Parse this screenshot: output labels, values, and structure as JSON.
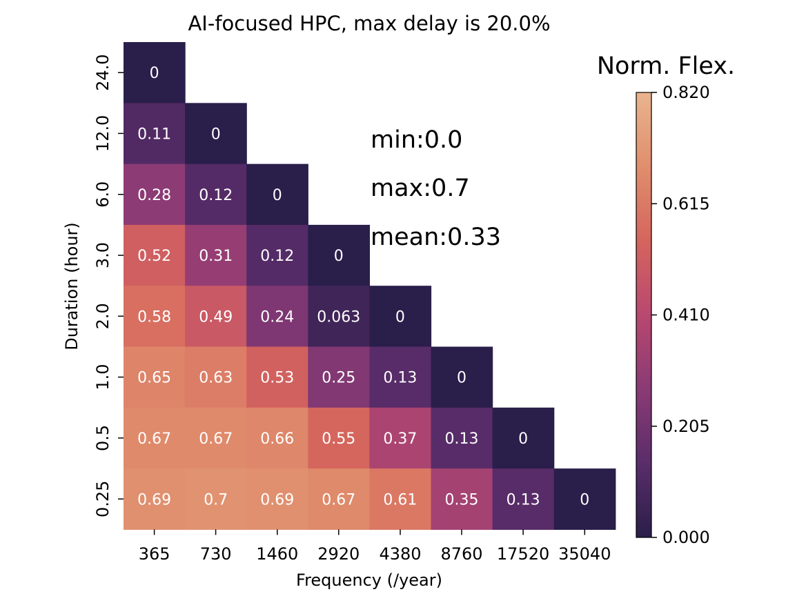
{
  "chart_data": {
    "type": "heatmap",
    "title": "AI-focused HPC, max delay is 20.0%",
    "xlabel": "Frequency (/year)",
    "ylabel": "Duration (hour)",
    "x_categories": [
      "365",
      "730",
      "1460",
      "2920",
      "4380",
      "8760",
      "17520",
      "35040"
    ],
    "y_categories": [
      "24.0",
      "12.0",
      "6.0",
      "3.0",
      "2.0",
      "1.0",
      "0.5",
      "0.25"
    ],
    "cells": [
      [
        0,
        null,
        null,
        null,
        null,
        null,
        null,
        null
      ],
      [
        0.11,
        0,
        null,
        null,
        null,
        null,
        null,
        null
      ],
      [
        0.28,
        0.12,
        0,
        null,
        null,
        null,
        null,
        null
      ],
      [
        0.52,
        0.31,
        0.12,
        0,
        null,
        null,
        null,
        null
      ],
      [
        0.58,
        0.49,
        0.24,
        0.063,
        0,
        null,
        null,
        null
      ],
      [
        0.65,
        0.63,
        0.53,
        0.25,
        0.13,
        0,
        null,
        null
      ],
      [
        0.67,
        0.67,
        0.66,
        0.55,
        0.37,
        0.13,
        0,
        null
      ],
      [
        0.69,
        0.7,
        0.69,
        0.67,
        0.61,
        0.35,
        0.13,
        0
      ]
    ],
    "cell_labels": [
      [
        "0",
        "",
        "",
        "",
        "",
        "",
        "",
        ""
      ],
      [
        "0.11",
        "0",
        "",
        "",
        "",
        "",
        "",
        ""
      ],
      [
        "0.28",
        "0.12",
        "0",
        "",
        "",
        "",
        "",
        ""
      ],
      [
        "0.52",
        "0.31",
        "0.12",
        "0",
        "",
        "",
        "",
        ""
      ],
      [
        "0.58",
        "0.49",
        "0.24",
        "0.063",
        "0",
        "",
        "",
        ""
      ],
      [
        "0.65",
        "0.63",
        "0.53",
        "0.25",
        "0.13",
        "0",
        "",
        ""
      ],
      [
        "0.67",
        "0.67",
        "0.66",
        "0.55",
        "0.37",
        "0.13",
        "0",
        ""
      ],
      [
        "0.69",
        "0.7",
        "0.69",
        "0.67",
        "0.61",
        "0.35",
        "0.13",
        "0"
      ]
    ],
    "annotations": [
      "min:0.0",
      "max:0.7",
      "mean:0.33"
    ],
    "colorbar": {
      "label": "Norm. Flex.",
      "vmin": 0.0,
      "vmax": 0.82,
      "ticks": [
        "0.000",
        "0.205",
        "0.410",
        "0.615",
        "0.820"
      ],
      "colormap": "flare_r",
      "color_stops": [
        "#2a1e4a",
        "#5a2d6a",
        "#8a3a75",
        "#b8486f",
        "#d5655d",
        "#e08e6d",
        "#e9b48e"
      ]
    },
    "text_color": "#ffffff"
  }
}
